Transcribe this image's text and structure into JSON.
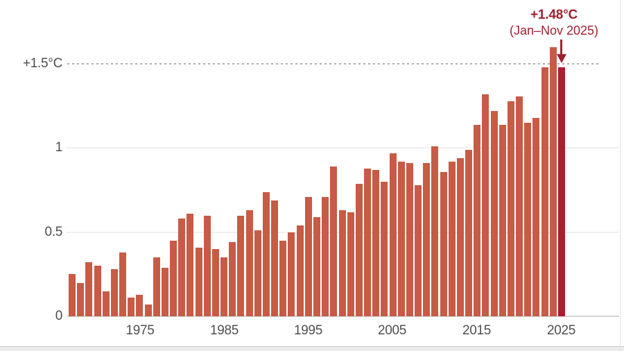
{
  "chart_data": {
    "type": "bar",
    "title": "",
    "unit": "°C",
    "years": [
      1967,
      1968,
      1969,
      1970,
      1971,
      1972,
      1973,
      1974,
      1975,
      1976,
      1977,
      1978,
      1979,
      1980,
      1981,
      1982,
      1983,
      1984,
      1985,
      1986,
      1987,
      1988,
      1989,
      1990,
      1991,
      1992,
      1993,
      1994,
      1995,
      1996,
      1997,
      1998,
      1999,
      2000,
      2001,
      2002,
      2003,
      2004,
      2005,
      2006,
      2007,
      2008,
      2009,
      2010,
      2011,
      2012,
      2013,
      2014,
      2015,
      2016,
      2017,
      2018,
      2019,
      2020,
      2021,
      2022,
      2023,
      2024,
      2025
    ],
    "values": [
      0.25,
      0.2,
      0.32,
      0.3,
      0.15,
      0.28,
      0.38,
      0.11,
      0.13,
      0.07,
      0.35,
      0.29,
      0.45,
      0.58,
      0.61,
      0.41,
      0.6,
      0.4,
      0.35,
      0.44,
      0.6,
      0.63,
      0.51,
      0.74,
      0.69,
      0.45,
      0.5,
      0.54,
      0.71,
      0.59,
      0.71,
      0.89,
      0.63,
      0.62,
      0.79,
      0.88,
      0.87,
      0.8,
      0.97,
      0.92,
      0.91,
      0.78,
      0.91,
      1.01,
      0.86,
      0.92,
      0.94,
      0.99,
      1.14,
      1.32,
      1.22,
      1.14,
      1.28,
      1.31,
      1.15,
      1.18,
      1.48,
      1.6,
      1.48
    ],
    "highlight_year": 2025,
    "ylim": [
      0,
      1.65
    ],
    "grid": "horizontal",
    "y_ticks": [
      {
        "label": "0",
        "value": 0
      },
      {
        "label": "0.5",
        "value": 0.5
      },
      {
        "label": "1",
        "value": 1
      },
      {
        "label": "+1.5°C",
        "value": 1.5
      }
    ],
    "x_ticks": [
      {
        "label": "1975"
      },
      {
        "label": "1985"
      },
      {
        "label": "1995"
      },
      {
        "label": "2005"
      },
      {
        "label": "2015"
      },
      {
        "label": "2025"
      }
    ],
    "threshold": {
      "value": 1.5,
      "style": "dashed"
    },
    "annotation": {
      "value_label": "+1.48°C",
      "period_label": "(Jan–Nov 2025)",
      "points_to_year": 2025
    },
    "colors": {
      "bar": "#c75b46",
      "highlight_bar": "#aa1f2e",
      "annotation": "#a0202f",
      "axis_text": "#4c4c4c",
      "gridline": "#efefef",
      "baseline": "#d6d6d6",
      "dashed_line": "#adadad"
    }
  }
}
